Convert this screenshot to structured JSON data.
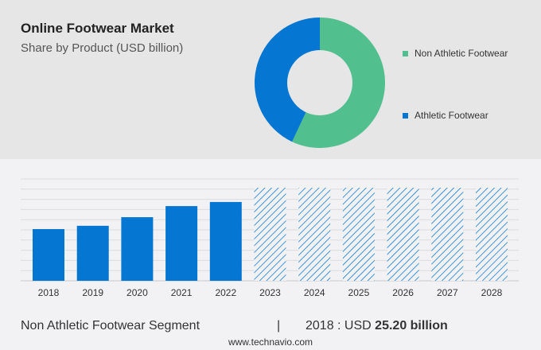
{
  "header": {
    "title": "Online Footwear Market",
    "subtitle": "Share by Product (USD billion)"
  },
  "chart_data": [
    {
      "type": "pie",
      "donut": true,
      "slices": [
        {
          "name": "Non Athletic Footwear",
          "value": 57,
          "color": "#52c08e"
        },
        {
          "name": "Athletic Footwear",
          "value": 43,
          "color": "#0576d1"
        }
      ],
      "legend": "right"
    },
    {
      "type": "bar",
      "categories": [
        "2018",
        "2019",
        "2020",
        "2021",
        "2022",
        "2023",
        "2024",
        "2025",
        "2026",
        "2027",
        "2028"
      ],
      "values": [
        25.2,
        26.8,
        31.0,
        36.4,
        38.4,
        null,
        null,
        null,
        null,
        null,
        null
      ],
      "forecast_categories": [
        "2023",
        "2024",
        "2025",
        "2026",
        "2027",
        "2028"
      ],
      "color": "#0576d1",
      "grid": true,
      "ylim": [
        0,
        50
      ]
    }
  ],
  "footer": {
    "segment": "Non Athletic Footwear Segment",
    "separator": "|",
    "year_label": "2018 : USD",
    "value": "25.20 billion",
    "url": "www.technavio.com"
  }
}
